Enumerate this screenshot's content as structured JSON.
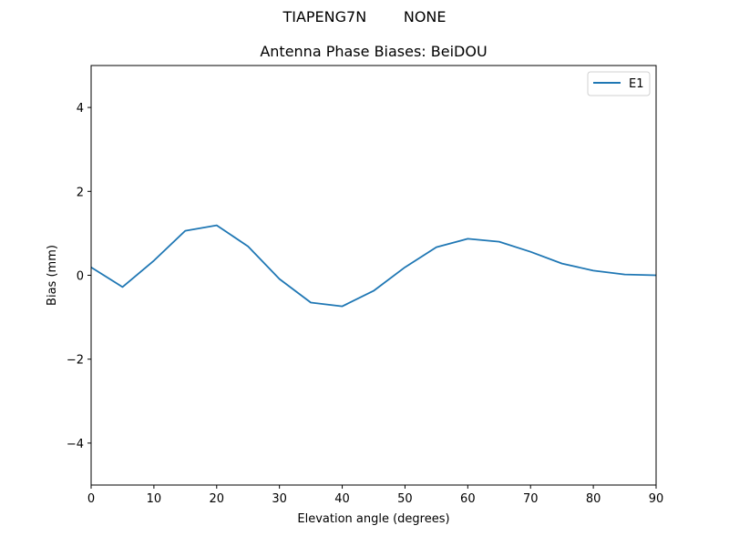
{
  "figure": {
    "suptitle": "TIAPENG7N        NONE",
    "title": "Antenna Phase Biases: BeiDOU"
  },
  "chart_data": {
    "type": "line",
    "suptitle": "TIAPENG7N        NONE",
    "title": "Antenna Phase Biases: BeiDOU",
    "xlabel": "Elevation angle (degrees)",
    "ylabel": "Bias (mm)",
    "xlim": [
      0,
      90
    ],
    "ylim": [
      -5,
      5
    ],
    "xticks": [
      0,
      10,
      20,
      30,
      40,
      50,
      60,
      70,
      80,
      90
    ],
    "yticks": [
      -4,
      -2,
      0,
      2,
      4
    ],
    "ytick_labels": [
      "−4",
      "−2",
      "0",
      "2",
      "4"
    ],
    "grid": false,
    "legend_position": "upper right",
    "x": [
      0,
      5,
      10,
      15,
      20,
      25,
      30,
      35,
      40,
      45,
      50,
      55,
      60,
      65,
      70,
      75,
      80,
      85,
      90
    ],
    "series": [
      {
        "name": "E1",
        "color": "#1f77b4",
        "values": [
          0.19,
          -0.28,
          0.35,
          1.06,
          1.19,
          0.69,
          -0.09,
          -0.65,
          -0.74,
          -0.37,
          0.19,
          0.67,
          0.87,
          0.8,
          0.56,
          0.28,
          0.11,
          0.02,
          0.0
        ]
      }
    ]
  }
}
